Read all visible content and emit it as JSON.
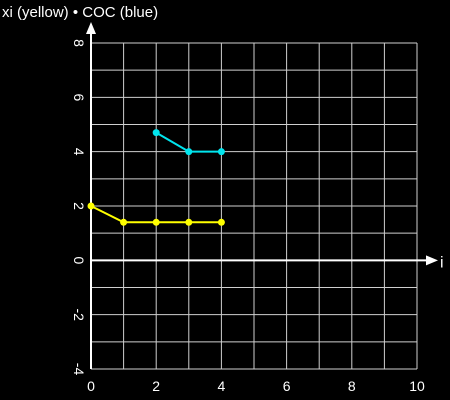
{
  "chart_data": {
    "type": "line",
    "title": "xi (yellow) • COC (blue)",
    "xlabel": "i",
    "ylabel": "",
    "xlim": [
      0,
      10
    ],
    "ylim": [
      -4,
      8
    ],
    "grid": true,
    "x_ticks": [
      "0",
      "2",
      "4",
      "6",
      "8",
      "10"
    ],
    "y_ticks": [
      "-4",
      "-2",
      "0",
      "2",
      "4",
      "6",
      "8"
    ],
    "series": [
      {
        "color": "#ffff00",
        "x": [
          0,
          1,
          2,
          3,
          4
        ],
        "y": [
          2.0,
          1.4,
          1.4,
          1.4,
          1.4
        ]
      },
      {
        "color": "#00e5ee",
        "x": [
          2,
          3,
          4
        ],
        "y": [
          4.7,
          4.0,
          4.0
        ]
      }
    ]
  }
}
